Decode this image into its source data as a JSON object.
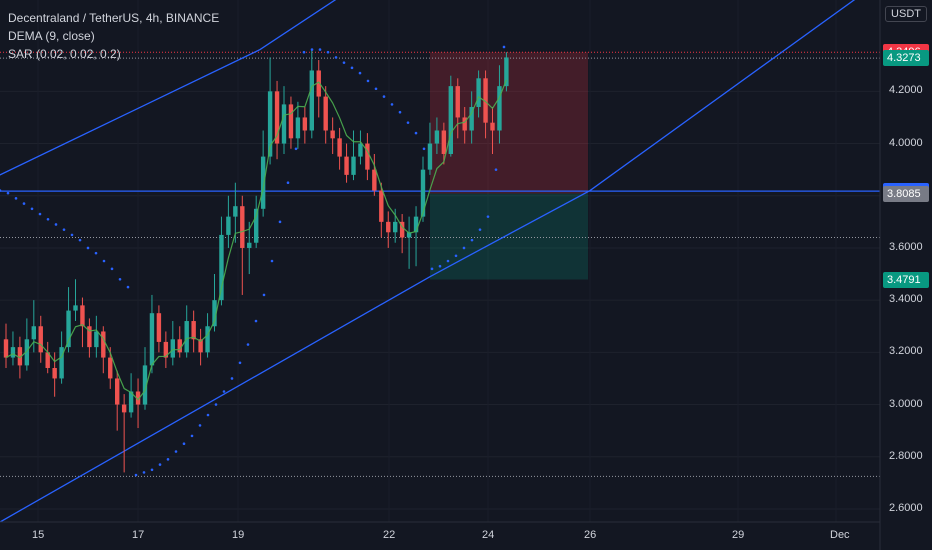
{
  "legend": {
    "title": "Decentraland / TetherUS, 4h, BINANCE",
    "indicator1": "DEMA (9, close)",
    "indicator2": "SAR (0.02, 0.02, 0.2)"
  },
  "currency": "USDT",
  "colors": {
    "background": "#131722",
    "up": "#26a69a",
    "down": "#ef5350",
    "trendline": "#2962ff",
    "dema": "#4caf50",
    "sar": "#2962ff",
    "stop_zone": "#f23645",
    "target_zone": "#089981"
  },
  "chart_data": {
    "type": "candlestick",
    "symbol": "MANA/USDT",
    "timeframe": "4h",
    "exchange": "BINANCE",
    "y_axis": {
      "min": 2.55,
      "max": 4.55,
      "ticks": [
        "2.6000",
        "2.8000",
        "3.0000",
        "3.2000",
        "3.4000",
        "3.6000",
        "3.8000",
        "4.0000",
        "4.2000"
      ]
    },
    "x_axis": {
      "ticks": [
        "15",
        "17",
        "19",
        "22",
        "24",
        "26",
        "29",
        "Dec"
      ]
    },
    "price_labels": [
      {
        "value": "4.3496",
        "type": "high",
        "color": "#f23645"
      },
      {
        "value": "4.3273",
        "type": "last",
        "color": "#089981"
      },
      {
        "value": "3.8177",
        "type": "level",
        "color": "#2962ff"
      },
      {
        "value": "3.8085",
        "type": "entry",
        "color": "#787b86"
      },
      {
        "value": "3.4791",
        "type": "target",
        "color": "#089981"
      }
    ],
    "horizontal_lines": [
      4.3496,
      4.3273,
      3.8177,
      3.64,
      2.725
    ],
    "channel": {
      "upper": [
        [
          -30,
          3.84
        ],
        [
          0,
          3.88
        ],
        [
          260,
          4.36
        ],
        [
          339,
          4.56
        ]
      ],
      "lower": [
        [
          0,
          2.55
        ],
        [
          430,
          3.49
        ],
        [
          590,
          3.82
        ],
        [
          930,
          4.76
        ]
      ]
    },
    "position_box": {
      "x_start": 430,
      "x_end": 588,
      "stop": 4.3496,
      "entry": 3.8085,
      "target": 3.4791
    },
    "candles": [
      [
        3.25,
        3.18,
        3.31,
        3.14
      ],
      [
        3.18,
        3.22,
        3.28,
        3.15
      ],
      [
        3.22,
        3.15,
        3.26,
        3.1
      ],
      [
        3.15,
        3.25,
        3.33,
        3.13
      ],
      [
        3.25,
        3.3,
        3.4,
        3.2
      ],
      [
        3.3,
        3.2,
        3.34,
        3.16
      ],
      [
        3.2,
        3.14,
        3.24,
        3.12
      ],
      [
        3.14,
        3.1,
        3.2,
        3.03
      ],
      [
        3.1,
        3.22,
        3.28,
        3.08
      ],
      [
        3.22,
        3.36,
        3.45,
        3.2
      ],
      [
        3.36,
        3.38,
        3.48,
        3.32
      ],
      [
        3.38,
        3.3,
        3.41,
        3.22
      ],
      [
        3.3,
        3.22,
        3.33,
        3.18
      ],
      [
        3.22,
        3.28,
        3.34,
        3.18
      ],
      [
        3.28,
        3.18,
        3.3,
        3.12
      ],
      [
        3.18,
        3.1,
        3.22,
        3.06
      ],
      [
        3.1,
        3.0,
        3.13,
        2.9
      ],
      [
        3.0,
        2.97,
        3.04,
        2.74
      ],
      [
        2.97,
        3.05,
        3.12,
        2.95
      ],
      [
        3.05,
        3.0,
        3.1,
        2.91
      ],
      [
        3.0,
        3.15,
        3.22,
        2.98
      ],
      [
        3.15,
        3.35,
        3.42,
        3.12
      ],
      [
        3.35,
        3.24,
        3.38,
        3.2
      ],
      [
        3.24,
        3.18,
        3.28,
        3.14
      ],
      [
        3.18,
        3.25,
        3.32,
        3.15
      ],
      [
        3.25,
        3.2,
        3.3,
        3.18
      ],
      [
        3.2,
        3.32,
        3.38,
        3.18
      ],
      [
        3.32,
        3.25,
        3.36,
        3.2
      ],
      [
        3.25,
        3.2,
        3.29,
        3.15
      ],
      [
        3.2,
        3.3,
        3.35,
        3.18
      ],
      [
        3.3,
        3.4,
        3.5,
        3.28
      ],
      [
        3.4,
        3.65,
        3.72,
        3.38
      ],
      [
        3.65,
        3.72,
        3.8,
        3.6
      ],
      [
        3.72,
        3.76,
        3.85,
        3.62
      ],
      [
        3.76,
        3.6,
        3.8,
        3.42
      ],
      [
        3.6,
        3.62,
        3.7,
        3.5
      ],
      [
        3.62,
        3.75,
        3.8,
        3.6
      ],
      [
        3.75,
        3.95,
        4.05,
        3.72
      ],
      [
        3.95,
        4.2,
        4.33,
        3.92
      ],
      [
        4.2,
        4.0,
        4.24,
        3.94
      ],
      [
        4.0,
        4.15,
        4.22,
        3.96
      ],
      [
        4.15,
        4.02,
        4.18,
        3.98
      ],
      [
        4.02,
        4.1,
        4.16,
        3.98
      ],
      [
        4.1,
        4.05,
        4.14,
        4.0
      ],
      [
        4.05,
        4.28,
        4.36,
        4.02
      ],
      [
        4.28,
        4.18,
        4.32,
        4.1
      ],
      [
        4.18,
        4.05,
        4.22,
        4.0
      ],
      [
        4.05,
        4.02,
        4.1,
        3.96
      ],
      [
        4.02,
        3.95,
        4.06,
        3.9
      ],
      [
        3.95,
        3.88,
        4.0,
        3.85
      ],
      [
        3.88,
        3.95,
        4.05,
        3.86
      ],
      [
        3.95,
        4.0,
        4.05,
        3.92
      ],
      [
        4.0,
        3.9,
        4.04,
        3.86
      ],
      [
        3.9,
        3.82,
        3.96,
        3.8
      ],
      [
        3.82,
        3.7,
        3.85,
        3.64
      ],
      [
        3.7,
        3.66,
        3.74,
        3.6
      ],
      [
        3.66,
        3.7,
        3.75,
        3.62
      ],
      [
        3.7,
        3.64,
        3.73,
        3.58
      ],
      [
        3.64,
        3.66,
        3.72,
        3.52
      ],
      [
        3.66,
        3.72,
        3.76,
        3.53
      ],
      [
        3.72,
        3.9,
        3.95,
        3.7
      ],
      [
        3.9,
        4.0,
        4.08,
        3.88
      ],
      [
        4.0,
        4.05,
        4.1,
        3.96
      ],
      [
        4.05,
        3.96,
        4.08,
        3.92
      ],
      [
        3.96,
        4.22,
        4.26,
        3.95
      ],
      [
        4.22,
        4.1,
        4.25,
        4.02
      ],
      [
        4.1,
        4.05,
        4.14,
        4.0
      ],
      [
        4.05,
        4.14,
        4.2,
        4.0
      ],
      [
        4.14,
        4.25,
        4.28,
        4.1
      ],
      [
        4.25,
        4.08,
        4.28,
        4.02
      ],
      [
        4.08,
        4.05,
        4.14,
        3.96
      ],
      [
        4.05,
        4.22,
        4.3,
        4.0
      ],
      [
        4.22,
        4.33,
        4.35,
        4.2
      ]
    ],
    "sar_points": [
      [
        0,
        3.82
      ],
      [
        8,
        3.81
      ],
      [
        16,
        3.79
      ],
      [
        24,
        3.77
      ],
      [
        32,
        3.75
      ],
      [
        40,
        3.73
      ],
      [
        48,
        3.71
      ],
      [
        56,
        3.69
      ],
      [
        64,
        3.67
      ],
      [
        72,
        3.65
      ],
      [
        80,
        3.63
      ],
      [
        88,
        3.6
      ],
      [
        96,
        3.58
      ],
      [
        104,
        3.55
      ],
      [
        112,
        3.52
      ],
      [
        120,
        3.48
      ],
      [
        128,
        3.45
      ],
      [
        136,
        2.73
      ],
      [
        144,
        2.74
      ],
      [
        152,
        2.75
      ],
      [
        160,
        2.77
      ],
      [
        168,
        2.79
      ],
      [
        176,
        2.82
      ],
      [
        184,
        2.85
      ],
      [
        192,
        2.88
      ],
      [
        200,
        2.92
      ],
      [
        208,
        2.96
      ],
      [
        216,
        3.0
      ],
      [
        224,
        3.05
      ],
      [
        232,
        3.1
      ],
      [
        240,
        3.16
      ],
      [
        248,
        3.23
      ],
      [
        256,
        3.32
      ],
      [
        264,
        3.42
      ],
      [
        272,
        3.55
      ],
      [
        280,
        3.7
      ],
      [
        288,
        3.85
      ],
      [
        296,
        3.98
      ],
      [
        304,
        4.35
      ],
      [
        312,
        4.36
      ],
      [
        320,
        4.36
      ],
      [
        328,
        4.35
      ],
      [
        336,
        4.33
      ],
      [
        344,
        4.31
      ],
      [
        352,
        4.29
      ],
      [
        360,
        4.27
      ],
      [
        368,
        4.24
      ],
      [
        376,
        4.21
      ],
      [
        384,
        4.18
      ],
      [
        392,
        4.15
      ],
      [
        400,
        4.12
      ],
      [
        408,
        4.08
      ],
      [
        416,
        4.04
      ],
      [
        424,
        3.98
      ],
      [
        432,
        3.52
      ],
      [
        440,
        3.53
      ],
      [
        448,
        3.55
      ],
      [
        456,
        3.57
      ],
      [
        464,
        3.6
      ],
      [
        472,
        3.63
      ],
      [
        480,
        3.67
      ],
      [
        488,
        3.72
      ],
      [
        496,
        3.9
      ],
      [
        504,
        4.37
      ]
    ]
  }
}
